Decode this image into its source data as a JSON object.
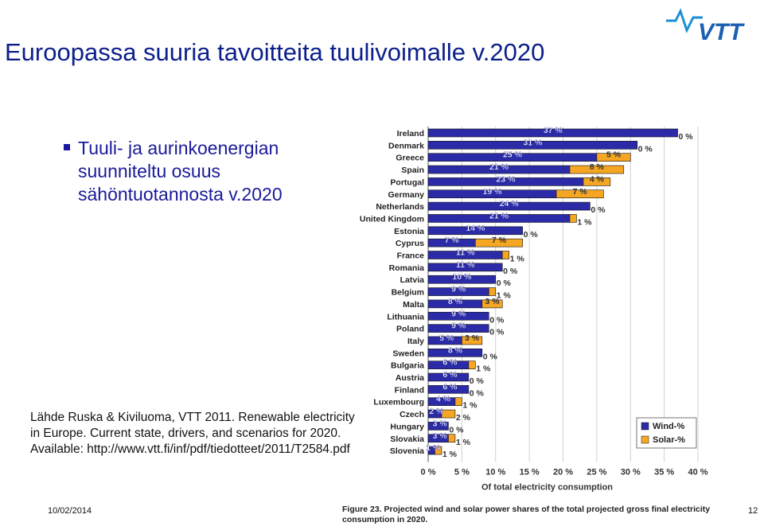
{
  "title": "Euroopassa suuria tavoitteita tuulivoimalle v.2020",
  "logo_text": "VTT",
  "bullet": "Tuuli- ja aurinkoenergian suunniteltu osuus sähöntuotannosta v.2020",
  "source": "Lähde Ruska & Kiviluoma, VTT 2011. Renewable electricity in Europe. Current state, drivers, and scenarios for 2020. Available: http://www.vtt.fi/inf/pdf/tiedotteet/2011/T2584.pdf",
  "footer": {
    "date": "10/02/2014",
    "page": "12"
  },
  "caption": "Figure 23. Projected wind and solar power shares of the total projected gross final electricity consumption in 2020.",
  "colors": {
    "wind": "#2b2ba8",
    "solar": "#f5a623",
    "title": "#0b1f8a"
  },
  "chart_data": {
    "type": "bar",
    "orientation": "horizontal-stacked",
    "categories": [
      "Ireland",
      "Denmark",
      "Greece",
      "Spain",
      "Portugal",
      "Germany",
      "Netherlands",
      "United Kingdom",
      "Estonia",
      "Cyprus",
      "France",
      "Romania",
      "Latvia",
      "Belgium",
      "Malta",
      "Lithuania",
      "Poland",
      "Italy",
      "Sweden",
      "Bulgaria",
      "Austria",
      "Finland",
      "Luxembourg",
      "Czech",
      "Hungary",
      "Slovakia",
      "Slovenia"
    ],
    "series": [
      {
        "name": "Wind-%",
        "values": [
          37,
          31,
          25,
          21,
          23,
          19,
          24,
          21,
          14,
          7,
          11,
          11,
          10,
          9,
          8,
          9,
          9,
          5,
          8,
          6,
          6,
          6,
          4,
          2,
          3,
          3,
          1
        ]
      },
      {
        "name": "Solar-%",
        "values": [
          0,
          0,
          5,
          8,
          4,
          7,
          0,
          1,
          0,
          7,
          1,
          0,
          0,
          1,
          3,
          0,
          0,
          3,
          0,
          1,
          0,
          0,
          1,
          2,
          0,
          1,
          1
        ]
      }
    ],
    "wind_labels": [
      "37 %",
      "31 %",
      "25 %",
      "21 %",
      "23 %",
      "19 %",
      "24 %",
      "21 %",
      "14 %",
      "7 %",
      "11 %",
      "11 %",
      "10 %",
      "9 %",
      "8 %",
      "9 %",
      "9 %",
      "5 %",
      "8 %",
      "6 %",
      "6 %",
      "6 %",
      "4 %",
      "2 %",
      "3 %",
      "3 %",
      "1 %"
    ],
    "solar_labels": [
      "0 %",
      "0 %",
      "5 %",
      "8 %",
      "4 %",
      "7 %",
      "0 %",
      "1 %",
      "0 %",
      "7 %",
      "1 %",
      "0 %",
      "0 %",
      "1 %",
      "3 %",
      "0 %",
      "0 %",
      "3 %",
      "0 %",
      "1 %",
      "0 %",
      "0 %",
      "1 %",
      "2 %",
      "0 %",
      "1 %",
      "1 %"
    ],
    "xlim": [
      0,
      40
    ],
    "x_ticks": [
      "0 %",
      "5 %",
      "10 %",
      "15 %",
      "20 %",
      "25 %",
      "30 %",
      "35 %",
      "40 %"
    ],
    "xlabel": "Of total electricity consumption",
    "grid": true,
    "legend_position": "bottom-right"
  }
}
